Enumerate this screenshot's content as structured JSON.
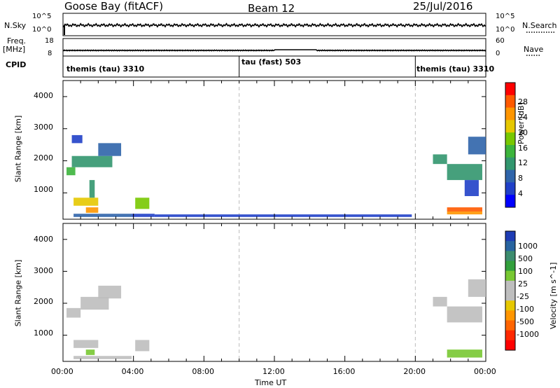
{
  "header": {
    "station": "Goose Bay (fitACF)",
    "beam": "Beam 12",
    "date": "25/Jul/2016"
  },
  "top_panels": {
    "nsky_label": "N.Sky",
    "nsky_ticks": [
      "10^5",
      "10^0"
    ],
    "nsearch_label": "N.Search",
    "nsearch_ticks": [
      "10^5",
      "10^0"
    ],
    "freq_label": "Freq.",
    "freq_unit": "[MHz]",
    "freq_ticks": [
      "18",
      "8"
    ],
    "nave_label": "Nave",
    "nave_ticks": [
      "60",
      "0"
    ],
    "cpid_label": "CPID",
    "cpid_segments": [
      {
        "label": "themis (tau) 3310",
        "start": 0,
        "end": 10
      },
      {
        "label": "tau (fast) 503",
        "start": 10,
        "end": 20
      },
      {
        "label": "themis (tau) 3310",
        "start": 20,
        "end": 24
      }
    ]
  },
  "axes": {
    "ylabel": "Slant Range [km]",
    "xlabel": "Time UT",
    "x_ticks": [
      "00:00",
      "04:00",
      "08:00",
      "12:00",
      "16:00",
      "20:00",
      "00:00"
    ],
    "y_ticks": [
      "1000",
      "2000",
      "3000",
      "4000"
    ]
  },
  "power_colorbar": {
    "label": "Power [dB]",
    "ticks": [
      "28",
      "24",
      "20",
      "16",
      "12",
      "8",
      "4"
    ],
    "colors": [
      "#ff0000",
      "#ff5a00",
      "#ff9600",
      "#e6c800",
      "#78c800",
      "#3cb43c",
      "#32966e",
      "#2f64aa",
      "#2040c8",
      "#0000ff"
    ]
  },
  "velocity_colorbar": {
    "label": "Velocity [m s^-1]",
    "ticks": [
      "1000",
      "500",
      "100",
      "25",
      "-25",
      "-100",
      "-500",
      "-1000"
    ],
    "colors": [
      "#1e3cb4",
      "#2864a0",
      "#3c8c6e",
      "#32a03c",
      "#78c832",
      "#bebebe",
      "#bebebe",
      "#e6c800",
      "#ff9600",
      "#ff6400",
      "#ff2800",
      "#ff0000"
    ]
  },
  "chart_data": [
    {
      "type": "heatmap",
      "title": "Power",
      "xlabel": "Time UT",
      "ylabel": "Slant Range [km]",
      "xlim": [
        0,
        24
      ],
      "ylim": [
        180,
        4500
      ],
      "zlim": [
        0,
        30
      ],
      "series": [
        {
          "name": "Power",
          "cells": [
            [
              0.2,
              1550,
              1800,
              0.5,
              14
            ],
            [
              0.5,
              1800,
              2150,
              2.3,
              12
            ],
            [
              2.0,
              2150,
              2550,
              1.3,
              8
            ],
            [
              0.5,
              2550,
              2800,
              0.6,
              6
            ],
            [
              0.6,
              600,
              850,
              1.4,
              20
            ],
            [
              1.3,
              380,
              550,
              0.7,
              24
            ],
            [
              1.5,
              850,
              1400,
              0.3,
              12
            ],
            [
              0.6,
              250,
              350,
              3.3,
              8
            ],
            [
              3.9,
              250,
              350,
              1.3,
              6
            ],
            [
              4.1,
              500,
              850,
              0.8,
              16
            ],
            [
              5.2,
              250,
              330,
              14.6,
              6
            ],
            [
              21.0,
              1900,
              2200,
              0.8,
              10
            ],
            [
              21.8,
              1400,
              1900,
              2.0,
              12
            ],
            [
              23.0,
              2200,
              2750,
              1.0,
              8
            ],
            [
              22.8,
              900,
              1400,
              0.8,
              6
            ],
            [
              21.8,
              420,
              550,
              2.0,
              27
            ],
            [
              21.8,
              330,
              420,
              2.0,
              24
            ]
          ]
        }
      ]
    },
    {
      "type": "heatmap",
      "title": "Velocity",
      "xlabel": "Time UT",
      "ylabel": "Slant Range [km]",
      "xlim": [
        0,
        24
      ],
      "ylim": [
        180,
        4500
      ],
      "zlim": [
        -1000,
        1000
      ],
      "series": [
        {
          "name": "Velocity",
          "cells": [
            [
              0.2,
              1550,
              1850,
              0.8,
              0
            ],
            [
              1.0,
              1800,
              2200,
              1.6,
              0
            ],
            [
              2.0,
              2150,
              2550,
              1.3,
              0
            ],
            [
              0.6,
              600,
              850,
              1.4,
              0
            ],
            [
              1.3,
              380,
              550,
              0.5,
              80
            ],
            [
              0.6,
              250,
              350,
              3.3,
              0
            ],
            [
              4.1,
              500,
              850,
              0.8,
              0
            ],
            [
              21.0,
              1900,
              2200,
              0.8,
              0
            ],
            [
              21.8,
              1400,
              1900,
              2.0,
              0
            ],
            [
              23.0,
              2200,
              2750,
              1.0,
              0
            ],
            [
              21.8,
              300,
              550,
              2.0,
              90
            ]
          ]
        }
      ]
    }
  ]
}
